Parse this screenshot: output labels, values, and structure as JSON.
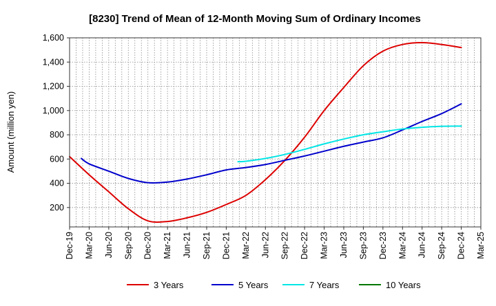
{
  "chart_data": {
    "type": "line",
    "title": "[8230]  Trend of Mean of 12-Month Moving Sum of Ordinary Incomes",
    "xlabel": "",
    "ylabel": "Amount (million yen)",
    "ylim": [
      40,
      1600
    ],
    "yticks": [
      200,
      400,
      600,
      800,
      1000,
      1200,
      1400,
      1600
    ],
    "ytick_labels": [
      "200",
      "400",
      "600",
      "800",
      "1,000",
      "1,200",
      "1,400",
      "1,600"
    ],
    "x_categories": [
      "Dec-19",
      "Mar-20",
      "Jun-20",
      "Sep-20",
      "Dec-20",
      "Mar-21",
      "Jun-21",
      "Sep-21",
      "Dec-21",
      "Mar-22",
      "Jun-22",
      "Sep-22",
      "Dec-22",
      "Mar-23",
      "Jun-23",
      "Sep-23",
      "Dec-23",
      "Mar-24",
      "Jun-24",
      "Sep-24",
      "Dec-24",
      "Mar-25"
    ],
    "grid": true,
    "legend_position": "bottom",
    "series": [
      {
        "name": "3 Years",
        "color": "#dd0000",
        "x": [
          0,
          1,
          2,
          3,
          4,
          5,
          6,
          7,
          8,
          9,
          10,
          11,
          12,
          13,
          14,
          15,
          16,
          17,
          18,
          19,
          20
        ],
        "values": [
          620,
          470,
          330,
          190,
          90,
          85,
          115,
          160,
          225,
          300,
          430,
          590,
          780,
          1000,
          1190,
          1370,
          1490,
          1545,
          1560,
          1545,
          1520
        ]
      },
      {
        "name": "5 Years",
        "color": "#0000cc",
        "x": [
          0.6,
          1,
          2,
          3,
          4,
          5,
          6,
          7,
          8,
          9,
          10,
          11,
          12,
          13,
          14,
          15,
          16,
          17,
          18,
          19,
          20
        ],
        "values": [
          605,
          560,
          500,
          440,
          405,
          410,
          435,
          470,
          510,
          530,
          555,
          590,
          625,
          665,
          705,
          740,
          775,
          840,
          910,
          975,
          1055
        ]
      },
      {
        "name": "7 Years",
        "color": "#00e5e5",
        "x": [
          8.6,
          9,
          10,
          11,
          12,
          13,
          14,
          15,
          16,
          17,
          18,
          19,
          20
        ],
        "values": [
          578,
          582,
          605,
          638,
          680,
          725,
          765,
          800,
          825,
          848,
          862,
          870,
          872
        ]
      },
      {
        "name": "10 Years",
        "color": "#007700",
        "x": [],
        "values": []
      }
    ]
  }
}
